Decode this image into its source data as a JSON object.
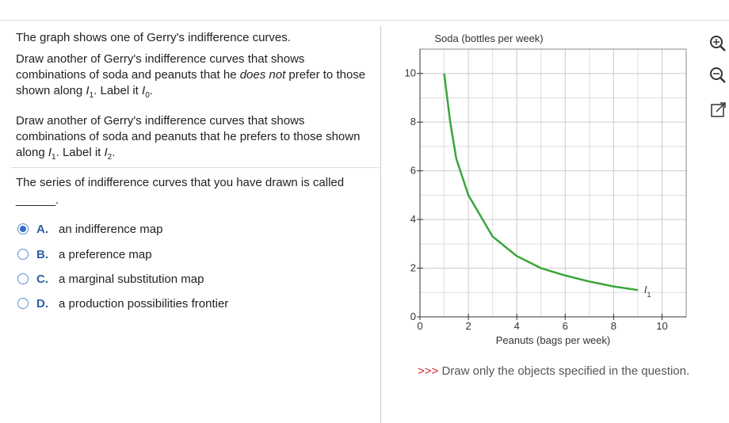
{
  "question": {
    "paragraphs": [
      [
        {
          "text": "The graph shows one of Gerry's indifference curves."
        }
      ],
      [
        {
          "text": "Draw another of Gerry's indifference curves that shows combinations of soda and peanuts that he "
        },
        {
          "text": "does not",
          "style": "italic"
        },
        {
          "text": " prefer to those shown along "
        },
        {
          "text": "I",
          "style": "italic"
        },
        {
          "text": "1",
          "style": "sub"
        },
        {
          "text": ". Label it "
        },
        {
          "text": "I",
          "style": "italic"
        },
        {
          "text": "0",
          "style": "sub"
        },
        {
          "text": "."
        }
      ],
      [
        {
          "text": "Draw another of Gerry's indifference curves that shows combinations of soda and peanuts that he prefers to those shown along "
        },
        {
          "text": "I",
          "style": "italic"
        },
        {
          "text": "1",
          "style": "sub"
        },
        {
          "text": ". Label it "
        },
        {
          "text": "I",
          "style": "italic"
        },
        {
          "text": "2",
          "style": "sub"
        },
        {
          "text": "."
        }
      ]
    ],
    "prompt": "The series of indifference curves that you have drawn is called",
    "blank": "______.",
    "options": [
      {
        "letter": "A.",
        "text": "an indifference map",
        "selected": true
      },
      {
        "letter": "B.",
        "text": "a preference map",
        "selected": false
      },
      {
        "letter": "C.",
        "text": "a marginal substitution map",
        "selected": false
      },
      {
        "letter": "D.",
        "text": "a production possibilities frontier",
        "selected": false
      }
    ]
  },
  "graph": {
    "type": "line",
    "ylabel": "Soda (bottles per week)",
    "xlabel": "Peanuts (bags per week)",
    "xlim": [
      0,
      11
    ],
    "ylim": [
      0,
      11
    ],
    "xticks": [
      0,
      2,
      4,
      6,
      8,
      10
    ],
    "yticks": [
      0,
      2,
      4,
      6,
      8,
      10
    ],
    "minor_grid": [
      1,
      3,
      5,
      7,
      9
    ],
    "series": [
      {
        "label": [
          {
            "text": "I",
            "style": "italic"
          },
          {
            "text": "1",
            "style": "sub"
          }
        ],
        "color": "#3aa53a",
        "x": [
          1,
          1.25,
          1.5,
          2,
          3,
          4,
          5,
          6,
          7,
          8,
          9
        ],
        "values": [
          10,
          8,
          6.5,
          5,
          3.3,
          2.5,
          2,
          1.7,
          1.45,
          1.25,
          1.1
        ]
      }
    ]
  },
  "footer": {
    "marker": ">>>",
    "text": "Draw only the objects specified in the question."
  }
}
